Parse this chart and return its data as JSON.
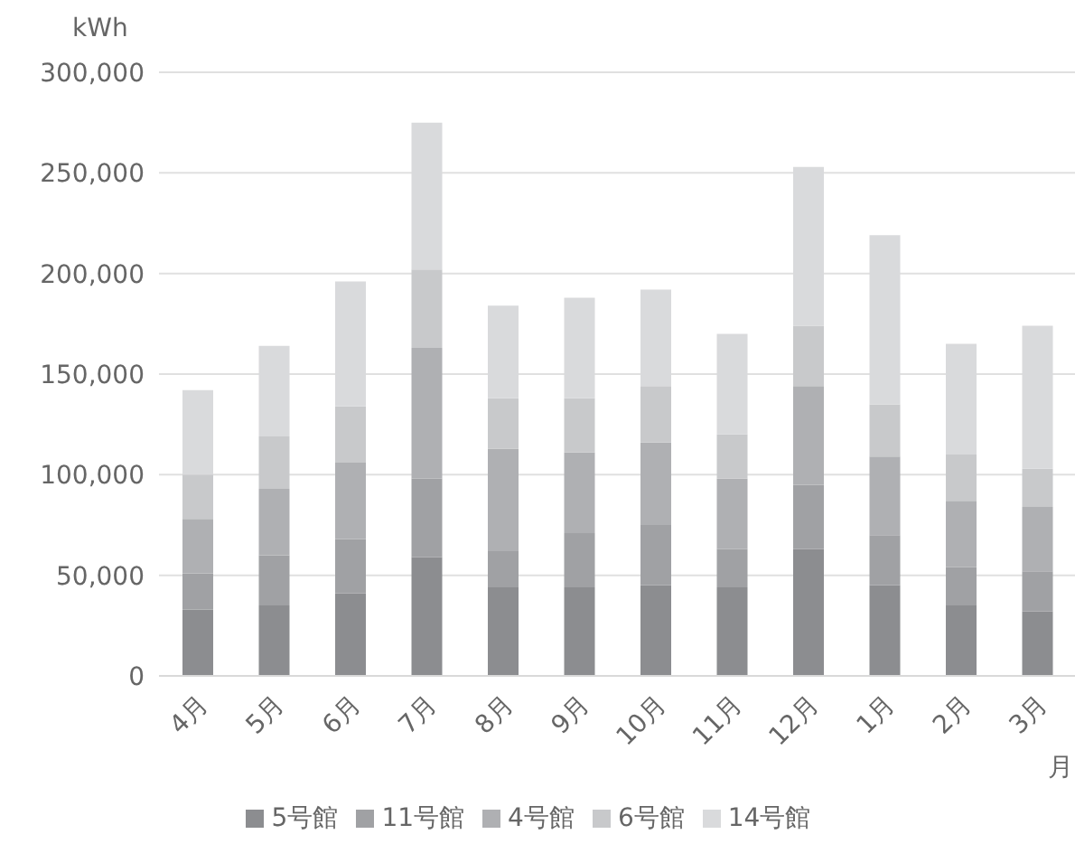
{
  "chart_data": {
    "type": "bar",
    "stacked": true,
    "ylabel": "kWh",
    "xlabel": "月",
    "categories": [
      "4月",
      "5月",
      "6月",
      "7月",
      "8月",
      "9月",
      "10月",
      "11月",
      "12月",
      "1月",
      "2月",
      "3月"
    ],
    "series": [
      {
        "name": "5号館",
        "color": "#8c8d90",
        "values": [
          33000,
          35000,
          41000,
          59000,
          44000,
          44000,
          45000,
          44000,
          63000,
          45000,
          35000,
          32000
        ]
      },
      {
        "name": "11号館",
        "color": "#a0a1a4",
        "values": [
          18000,
          25000,
          27000,
          39000,
          18000,
          27000,
          30000,
          19000,
          32000,
          25000,
          19000,
          20000
        ]
      },
      {
        "name": "4号館",
        "color": "#afb0b3",
        "values": [
          27000,
          33000,
          38000,
          65000,
          51000,
          40000,
          41000,
          35000,
          49000,
          39000,
          33000,
          32000
        ]
      },
      {
        "name": "6号館",
        "color": "#c8c9cb",
        "values": [
          22000,
          26000,
          28000,
          39000,
          25000,
          27000,
          28000,
          22000,
          30000,
          26000,
          23000,
          19000
        ]
      },
      {
        "name": "14号館",
        "color": "#d9dadc",
        "values": [
          42000,
          45000,
          62000,
          73000,
          46000,
          50000,
          48000,
          50000,
          79000,
          84000,
          55000,
          71000
        ]
      }
    ],
    "ylim": [
      0,
      300000
    ],
    "yticks": [
      0,
      {
        "value": 50000,
        "label": "50,000"
      },
      {
        "value": 100000,
        "label": "100,000"
      },
      {
        "value": 150000,
        "label": "150,000"
      },
      {
        "value": 200000,
        "label": "200,000"
      },
      {
        "value": 250000,
        "label": "250,000"
      },
      {
        "value": 300000,
        "label": "300,000"
      }
    ],
    "grid": "y",
    "legend": "bottom"
  }
}
